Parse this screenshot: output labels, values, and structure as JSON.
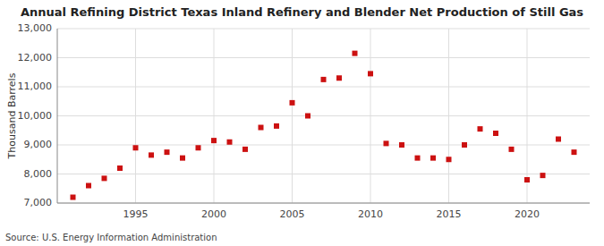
{
  "chart_data": {
    "type": "scatter",
    "title": "Annual Refining District Texas Inland Refinery and Blender Net Production of Still Gas",
    "y_label": "Thousand Barrels",
    "source": "Source: U.S. Energy Information Administration",
    "x": [
      1991,
      1992,
      1993,
      1994,
      1995,
      1996,
      1997,
      1998,
      1999,
      2000,
      2001,
      2002,
      2003,
      2004,
      2005,
      2006,
      2007,
      2008,
      2009,
      2010,
      2011,
      2012,
      2013,
      2014,
      2015,
      2016,
      2017,
      2018,
      2019,
      2020,
      2021,
      2022,
      2023
    ],
    "values": [
      7200,
      7600,
      7850,
      8200,
      8900,
      8650,
      8750,
      8550,
      8900,
      9150,
      9100,
      8850,
      9600,
      9650,
      10450,
      10000,
      11250,
      11300,
      12150,
      11450,
      9050,
      9000,
      8550,
      8550,
      8500,
      9000,
      9550,
      9400,
      8850,
      7800,
      7950,
      9200,
      8750
    ],
    "color": "#cc1111",
    "marker": "square",
    "xlim": [
      1990,
      2024
    ],
    "ylim": [
      7000,
      13000
    ],
    "xticks": [
      1995,
      2000,
      2005,
      2010,
      2015,
      2020
    ],
    "yticks": [
      {
        "value": 7000,
        "label": "7,000"
      },
      {
        "value": 8000,
        "label": "8,000"
      },
      {
        "value": 9000,
        "label": "9,000"
      },
      {
        "value": 10000,
        "label": "10,000"
      },
      {
        "value": 11000,
        "label": "11,000"
      },
      {
        "value": 12000,
        "label": "12,000"
      },
      {
        "value": 13000,
        "label": "13,000"
      }
    ],
    "grid": true
  }
}
